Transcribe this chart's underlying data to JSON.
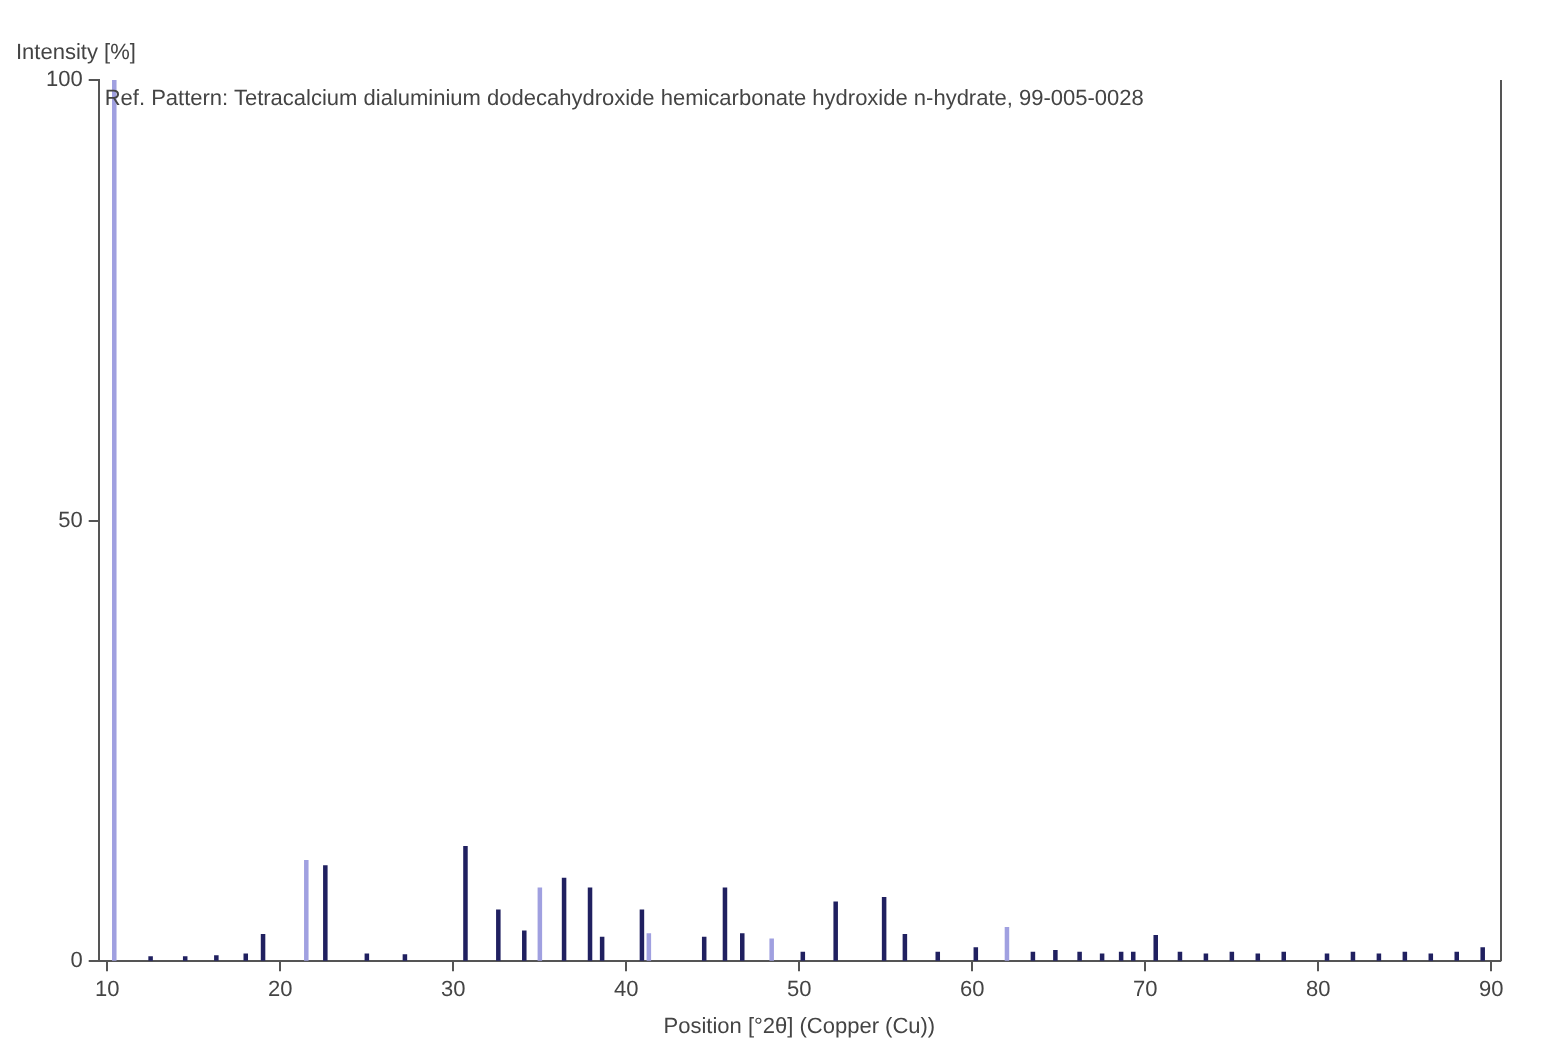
{
  "chart_data": {
    "type": "bar",
    "xlabel": "Position [°2θ] (Copper (Cu))",
    "ylabel": "Intensity [%]",
    "annotations": [
      "Ref. Pattern: Tetracalcium dialuminium dodecahydroxide hemicarbonate hydroxide n-hydrate, 99-005-0028"
    ],
    "x": [
      10.4,
      12.5,
      14.5,
      16.3,
      18.0,
      19.0,
      21.5,
      22.6,
      25.0,
      27.2,
      30.7,
      32.6,
      34.1,
      35.0,
      36.4,
      37.9,
      38.6,
      40.9,
      41.3,
      44.5,
      45.7,
      46.7,
      48.4,
      50.2,
      52.1,
      54.9,
      56.1,
      58.0,
      60.2,
      62.0,
      63.5,
      64.8,
      66.2,
      67.5,
      68.6,
      69.3,
      70.6,
      72.0,
      73.5,
      75.0,
      76.5,
      78.0,
      80.5,
      82.0,
      83.5,
      85.0,
      86.5,
      88.0,
      89.5
    ],
    "values": [
      100,
      0.5,
      0.5,
      0.6,
      0.8,
      3,
      11.4,
      10.8,
      0.8,
      0.7,
      13,
      5.8,
      3.4,
      8.3,
      9.4,
      8.3,
      2.7,
      5.8,
      3.1,
      2.7,
      8.3,
      3.1,
      2.5,
      1,
      6.7,
      7.2,
      3,
      1,
      1.5,
      3.8,
      1,
      1.2,
      1,
      0.8,
      1,
      1,
      2.9,
      1,
      0.8,
      1,
      0.8,
      1,
      0.8,
      1,
      0.8,
      1,
      0.8,
      1,
      1.5
    ],
    "colors": [
      "#a0a0e0",
      "#202060",
      "#202060",
      "#202060",
      "#202060",
      "#202060",
      "#a0a0e0",
      "#202060",
      "#202060",
      "#202060",
      "#202060",
      "#202060",
      "#202060",
      "#a0a0e0",
      "#202060",
      "#202060",
      "#202060",
      "#202060",
      "#a0a0e0",
      "#202060",
      "#202060",
      "#202060",
      "#a0a0e0",
      "#202060",
      "#202060",
      "#202060",
      "#202060",
      "#202060",
      "#202060",
      "#a0a0e0",
      "#202060",
      "#202060",
      "#202060",
      "#202060",
      "#202060",
      "#202060",
      "#202060",
      "#202060",
      "#202060",
      "#202060",
      "#202060",
      "#202060",
      "#202060",
      "#202060",
      "#202060",
      "#202060",
      "#202060",
      "#202060",
      "#202060"
    ],
    "xlim": [
      9.5,
      90.5
    ],
    "xticks": [
      10,
      20,
      30,
      40,
      50,
      60,
      70,
      80,
      90
    ],
    "ylim": [
      0,
      100
    ],
    "yticks": [
      0,
      50,
      100
    ],
    "grid": false,
    "legend": false
  }
}
